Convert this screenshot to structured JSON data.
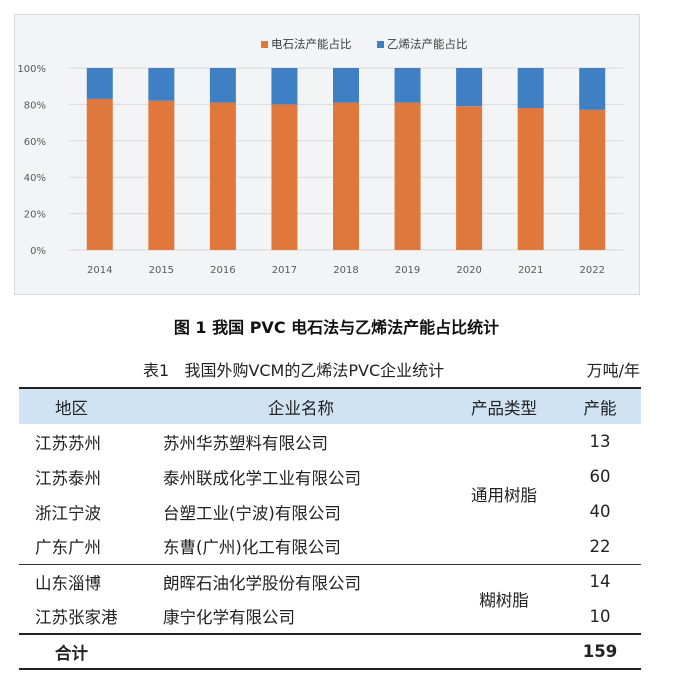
{
  "chart_data": {
    "type": "bar",
    "stacked": true,
    "normalized": true,
    "categories": [
      "2014",
      "2015",
      "2016",
      "2017",
      "2018",
      "2019",
      "2020",
      "2021",
      "2022"
    ],
    "series": [
      {
        "name": "电石法产能占比",
        "color": "#e0783e",
        "values": [
          83,
          82,
          81,
          80,
          81,
          81,
          79,
          78,
          77
        ]
      },
      {
        "name": "乙烯法产能占比",
        "color": "#3f7fc4",
        "values": [
          17,
          18,
          19,
          20,
          19,
          19,
          21,
          22,
          23
        ]
      }
    ],
    "ylim": [
      0,
      100
    ],
    "y_ticks": [
      "0%",
      "20%",
      "40%",
      "60%",
      "80%",
      "100%"
    ],
    "legend_position": "top-center",
    "grid": true,
    "title": "",
    "xlabel": "",
    "ylabel": ""
  },
  "figure_caption": "图 1   我国 PVC 电石法与乙烯法产能占比统计",
  "table": {
    "caption": "表1   我国外购VCM的乙烯法PVC企业统计",
    "unit": "万吨/年",
    "headers": {
      "region": "地区",
      "company": "企业名称",
      "type": "产品类型",
      "capacity": "产能"
    },
    "rows": [
      {
        "region": "江苏苏州",
        "company": "苏州华苏塑料有限公司",
        "capacity": "13"
      },
      {
        "region": "江苏泰州",
        "company": "泰州联成化学工业有限公司",
        "capacity": "60"
      },
      {
        "region": "浙江宁波",
        "company": "台塑工业(宁波)有限公司",
        "capacity": "40"
      },
      {
        "region": "广东广州",
        "company": "东曹(广州)化工有限公司",
        "capacity": "22"
      },
      {
        "region": "山东淄博",
        "company": "朗晖石油化学股份有限公司",
        "capacity": "14"
      },
      {
        "region": "江苏张家港",
        "company": "康宁化学有限公司",
        "capacity": "10"
      }
    ],
    "types": {
      "group1": "通用树脂",
      "group2": "糊树脂"
    },
    "total": {
      "label": "合计",
      "capacity": "159"
    }
  }
}
